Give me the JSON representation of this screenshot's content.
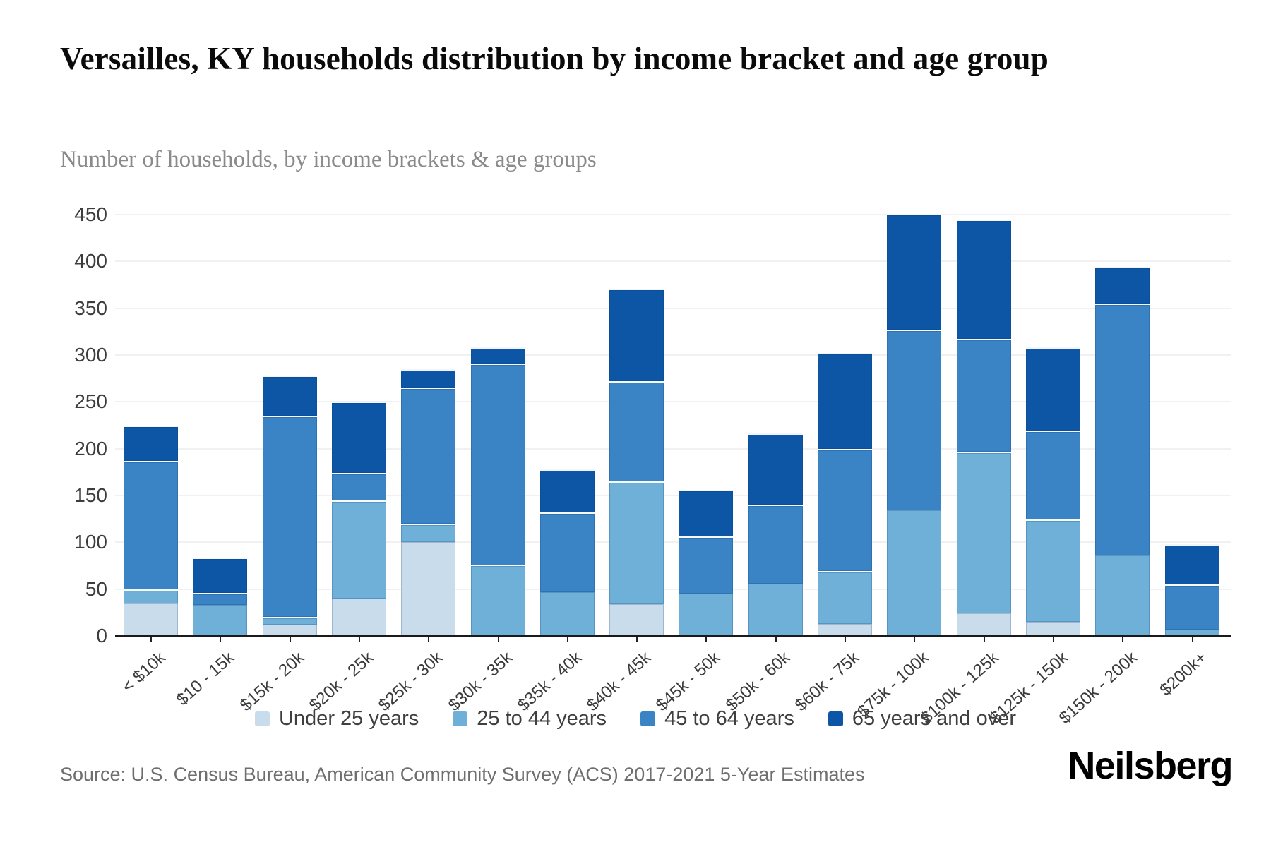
{
  "title": "Versailles, KY households distribution by income bracket and age group",
  "subtitle": "Number of households, by income brackets & age groups",
  "source": "Source: U.S. Census Bureau, American Community Survey (ACS) 2017-2021 5-Year Estimates",
  "logo": "Neilsberg",
  "colors": {
    "under25": "#c8dcec",
    "age25_44": "#6fb0d9",
    "age45_64": "#3a83c5",
    "age65plus": "#0d56a5",
    "axis": "#1a1a1a"
  },
  "chart_data": {
    "type": "bar",
    "stacked": true,
    "title": "Versailles, KY households distribution by income bracket and age group",
    "subtitle": "Number of households, by income brackets & age groups",
    "xlabel": "",
    "ylabel": "",
    "ylim": [
      0,
      450
    ],
    "ytick_step": 50,
    "yticks": [
      0,
      50,
      100,
      150,
      200,
      250,
      300,
      350,
      400,
      450
    ],
    "grid": true,
    "legend_position": "bottom",
    "categories": [
      "< $10k",
      "$10 - 15k",
      "$15k - 20k",
      "$20k - 25k",
      "$25k - 30k",
      "$30k - 35k",
      "$35k - 40k",
      "$40k - 45k",
      "$45k - 50k",
      "$50k - 60k",
      "$60k - 75k",
      "$75k - 100k",
      "$100k - 125k",
      "$125k - 150k",
      "$150k - 200k",
      "$200k+"
    ],
    "series": [
      {
        "name": "Under 25 years",
        "color": "#c8dcec",
        "values": [
          35,
          0,
          12,
          40,
          100,
          0,
          0,
          34,
          0,
          0,
          13,
          0,
          24,
          15,
          0,
          0
        ]
      },
      {
        "name": "25 to 44 years",
        "color": "#6fb0d9",
        "values": [
          15,
          33,
          8,
          105,
          20,
          75,
          47,
          131,
          45,
          56,
          56,
          134,
          173,
          109,
          86,
          7
        ]
      },
      {
        "name": "45 to 64 years",
        "color": "#3a83c5",
        "values": [
          137,
          13,
          215,
          29,
          145,
          216,
          85,
          107,
          61,
          84,
          131,
          193,
          120,
          95,
          269,
          48
        ]
      },
      {
        "name": "65 years and over",
        "color": "#0d56a5",
        "values": [
          38,
          38,
          43,
          76,
          20,
          17,
          46,
          99,
          50,
          76,
          102,
          124,
          128,
          89,
          39,
          43
        ]
      }
    ],
    "totals": [
      225,
      84,
      278,
      250,
      285,
      308,
      178,
      371,
      156,
      216,
      302,
      451,
      445,
      308,
      394,
      98
    ]
  }
}
